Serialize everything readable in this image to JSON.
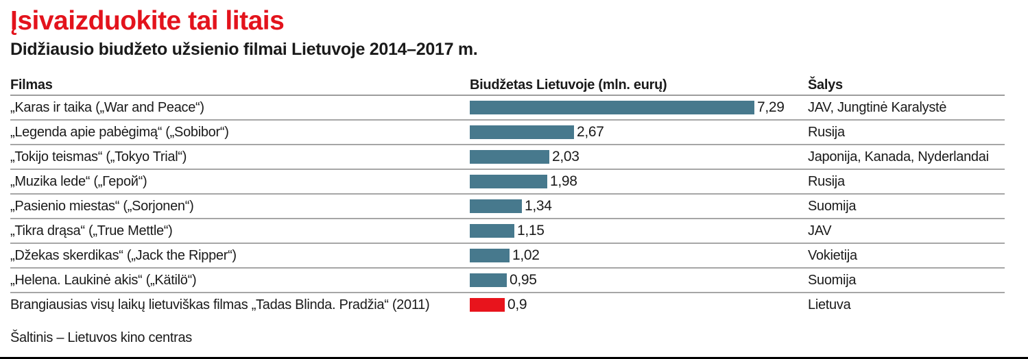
{
  "page": {
    "title": "Įsivaizduokite tai litais",
    "subtitle": "Didžiausio biudžeto užsienio filmai Lietuvoje 2014–2017 m.",
    "source": "Šaltinis – Lietuvos kino centras"
  },
  "table": {
    "headers": {
      "film": "Filmas",
      "budget": "Biudžetas Lietuvoje (mln. eurų)",
      "countries": "Šalys"
    }
  },
  "colors": {
    "title_red": "#e3131c",
    "bar_teal": "#47798d",
    "bar_red_highlight": "#e8141c",
    "separator_gray": "#a6a6a6",
    "bottom_rule_black": "#000000"
  },
  "chart_data": {
    "type": "bar",
    "orientation": "horizontal",
    "title": "Įsivaizduokite tai litais",
    "subtitle": "Didžiausio biudžeto užsienio filmai Lietuvoje 2014–2017 m.",
    "xlabel": "Biudžetas Lietuvoje (mln. eurų)",
    "xlim": [
      0,
      7.5
    ],
    "grid": false,
    "legend": false,
    "source": "Šaltinis – Lietuvos kino centras",
    "rows": [
      {
        "film": "„Karas ir taika („War and Peace“)",
        "value": 7.29,
        "value_label": "7,29",
        "countries": "JAV, Jungtinė Karalystė",
        "highlight": false
      },
      {
        "film": "„Legenda apie pabėgimą“ („Sobibor“)",
        "value": 2.67,
        "value_label": "2,67",
        "countries": "Rusija",
        "highlight": false
      },
      {
        "film": "„Tokijo teismas“ („Tokyo Trial“)",
        "value": 2.03,
        "value_label": "2,03",
        "countries": "Japonija, Kanada, Nyderlandai",
        "highlight": false
      },
      {
        "film": "„Muzika lede“ („Герой“)",
        "value": 1.98,
        "value_label": "1,98",
        "countries": "Rusija",
        "highlight": false
      },
      {
        "film": "„Pasienio miestas“ („Sorjonen“)",
        "value": 1.34,
        "value_label": "1,34",
        "countries": "Suomija",
        "highlight": false
      },
      {
        "film": "„Tikra drąsa“ („True Mettle“)",
        "value": 1.15,
        "value_label": "1,15",
        "countries": "JAV",
        "highlight": false
      },
      {
        "film": "„Džekas skerdikas“ („Jack the Ripper“)",
        "value": 1.02,
        "value_label": "1,02",
        "countries": "Vokietija",
        "highlight": false
      },
      {
        "film": "„Helena. Laukinė akis“ („Kätilö“)",
        "value": 0.95,
        "value_label": "0,95",
        "countries": "Suomija",
        "highlight": false
      },
      {
        "film": "Brangiausias visų laikų lietuviškas filmas „Tadas Blinda. Pradžia“ (2011)",
        "value": 0.9,
        "value_label": "0,9",
        "countries": "Lietuva",
        "highlight": true
      }
    ]
  }
}
